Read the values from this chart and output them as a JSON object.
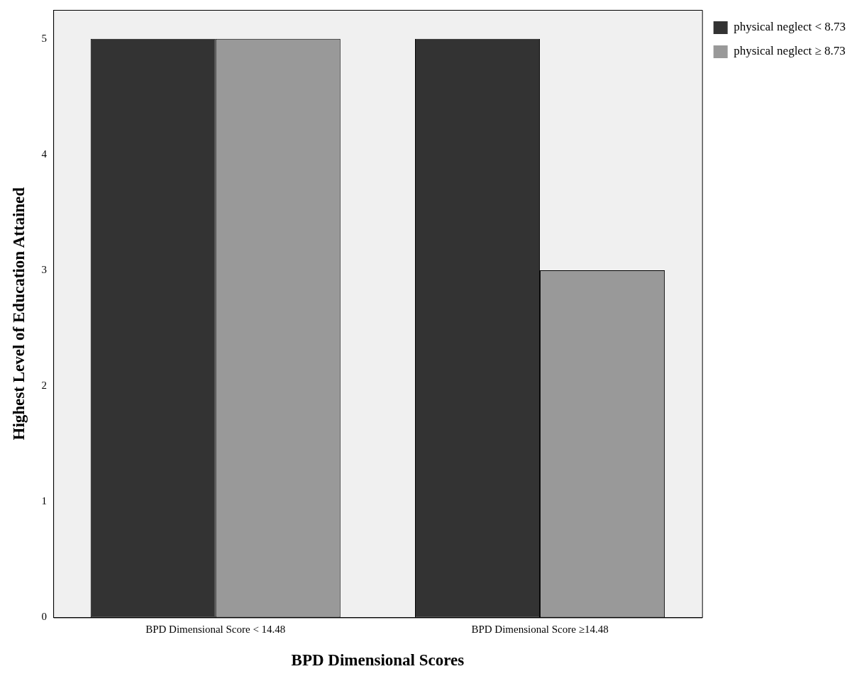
{
  "chart_data": {
    "type": "bar",
    "xlabel": "BPD Dimensional Scores",
    "ylabel": "Highest Level of Education Attained",
    "categories": [
      "BPD Dimensional Score < 14.48",
      "BPD Dimensional Score ≥14.48"
    ],
    "series": [
      {
        "name": "physical neglect < 8.73",
        "color": "#333333",
        "values": [
          5,
          5
        ]
      },
      {
        "name": "physical neglect ≥ 8.73",
        "color": "#999999",
        "values": [
          5,
          3
        ]
      }
    ],
    "ylim": [
      0,
      5.25
    ],
    "yticks": [
      0,
      1,
      2,
      3,
      4,
      5
    ],
    "grid": false,
    "legend": "top right"
  }
}
